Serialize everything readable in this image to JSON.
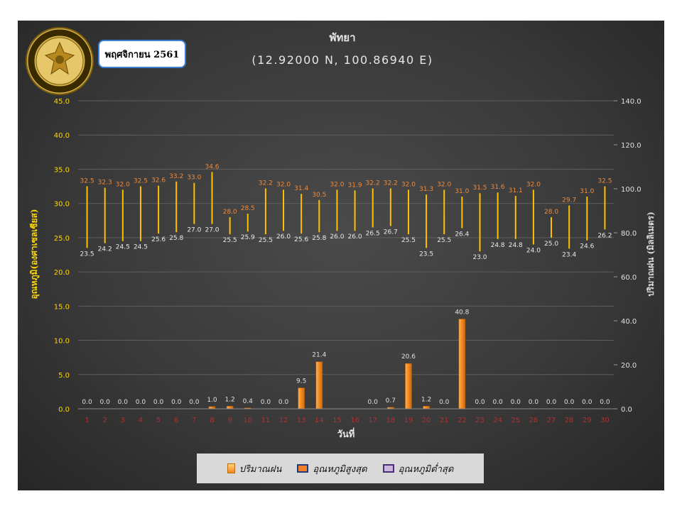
{
  "chart_data": {
    "type": "bar",
    "title": "พัทยา",
    "subtitle": "(12.92000 N, 100.86940 E)",
    "month_label": "พฤศจิกายน 2561",
    "xlabel": "วันที่",
    "ylabel_left": "อุณหภูมิ(องศาเซลเซียส)",
    "ylabel_right": "ปริมาณฝน (มิลลิเมตร)",
    "ylim_left": [
      0,
      45
    ],
    "ylim_right": [
      0,
      140
    ],
    "yticks_left": [
      "0.0",
      "5.0",
      "10.0",
      "15.0",
      "20.0",
      "25.0",
      "30.0",
      "35.0",
      "40.0",
      "45.0"
    ],
    "yticks_right": [
      "0.0",
      "20.0",
      "40.0",
      "60.0",
      "80.0",
      "100.0",
      "120.0",
      "140.0"
    ],
    "categories": [
      "1",
      "2",
      "3",
      "4",
      "5",
      "6",
      "7",
      "8",
      "9",
      "10",
      "11",
      "12",
      "13",
      "14",
      "15",
      "16",
      "17",
      "18",
      "19",
      "20",
      "21",
      "22",
      "23",
      "24",
      "25",
      "26",
      "27",
      "28",
      "29",
      "30"
    ],
    "series": [
      {
        "name": "ปริมาณฝน",
        "axis": "right",
        "color": "#f0891f",
        "values": [
          0.0,
          0.0,
          0.0,
          0.0,
          0.0,
          0.0,
          0.0,
          1.0,
          1.2,
          0.4,
          0.0,
          0.0,
          9.5,
          21.4,
          0.0,
          0.0,
          0.0,
          0.7,
          20.6,
          1.2,
          0.0,
          40.8,
          0.0,
          0.0,
          0.0,
          0.0,
          0.0,
          0.0,
          0.0,
          0.0
        ],
        "labels": [
          "0.0",
          "0.0",
          "0.0",
          "0.0",
          "0.0",
          "0.0",
          "0.0",
          "1.0",
          "1.2",
          "0.4",
          "0.0",
          "0.0",
          "9.5",
          "21.4",
          "",
          "",
          "0.0",
          "0.7",
          "20.6",
          "1.2",
          "0.0",
          "40.8",
          "0.0",
          "0.0",
          "0.0",
          "0.0",
          "0.0",
          "0.0",
          "0.0",
          "0.0"
        ]
      },
      {
        "name": "อุณหภูมิสูงสุด",
        "axis": "left",
        "color": "#f07f2a",
        "values": [
          32.5,
          32.3,
          32.0,
          32.5,
          32.6,
          33.2,
          33.0,
          34.6,
          28.0,
          28.5,
          32.2,
          32.0,
          31.4,
          30.5,
          32.0,
          31.9,
          32.2,
          32.2,
          32.0,
          31.3,
          32.0,
          31.0,
          31.5,
          31.6,
          31.1,
          32.0,
          28.0,
          29.7,
          31.0,
          32.5
        ],
        "labels": [
          "32.5",
          "32.3",
          "32.0",
          "32.5",
          "32.6",
          "33.2",
          "33.0",
          "34.6",
          "28.0",
          "28.5",
          "32.2",
          "32.0",
          "31.4",
          "30.5",
          "32.0",
          "31.9",
          "32.2",
          "32.2",
          "32.0",
          "31.3",
          "32.0",
          "31.0",
          "31.5",
          "31.6",
          "31.1",
          "32.0",
          "28.0",
          "29.7",
          "31.0",
          "32.5"
        ]
      },
      {
        "name": "อุณหภูมิต่ำสุด",
        "axis": "left",
        "color": "#c9b6dd",
        "values": [
          23.5,
          24.2,
          24.5,
          24.5,
          25.6,
          25.8,
          27.0,
          27.0,
          25.5,
          25.9,
          25.5,
          26.0,
          25.6,
          25.8,
          26.0,
          26.0,
          26.5,
          26.7,
          25.5,
          23.5,
          25.5,
          26.4,
          23.0,
          24.8,
          24.8,
          24.0,
          25.0,
          23.4,
          24.6,
          26.2
        ],
        "labels": [
          "23.5",
          "24.2",
          "24.5",
          "24.5",
          "25.6",
          "25.8",
          "27.0",
          "27.0",
          "25.5",
          "25.9",
          "25.5",
          "26.0",
          "25.6",
          "25.8",
          "26.0",
          "26.0",
          "26.5",
          "26.7",
          "25.5",
          "23.5",
          "25.5",
          "26.4",
          "23.0",
          "24.8",
          "24.8",
          "24.0",
          "25.0",
          "23.4",
          "24.6",
          "26.2"
        ]
      }
    ],
    "range_line_color": "#ffc000",
    "grid": true,
    "legend_position": "bottom"
  },
  "logo": {
    "text": "กรมอุตุนิยมวิทยา METEOROLOGICAL DEPARTMENT",
    "ring_color": "#3a2a00",
    "gold_color": "#c9a227"
  }
}
